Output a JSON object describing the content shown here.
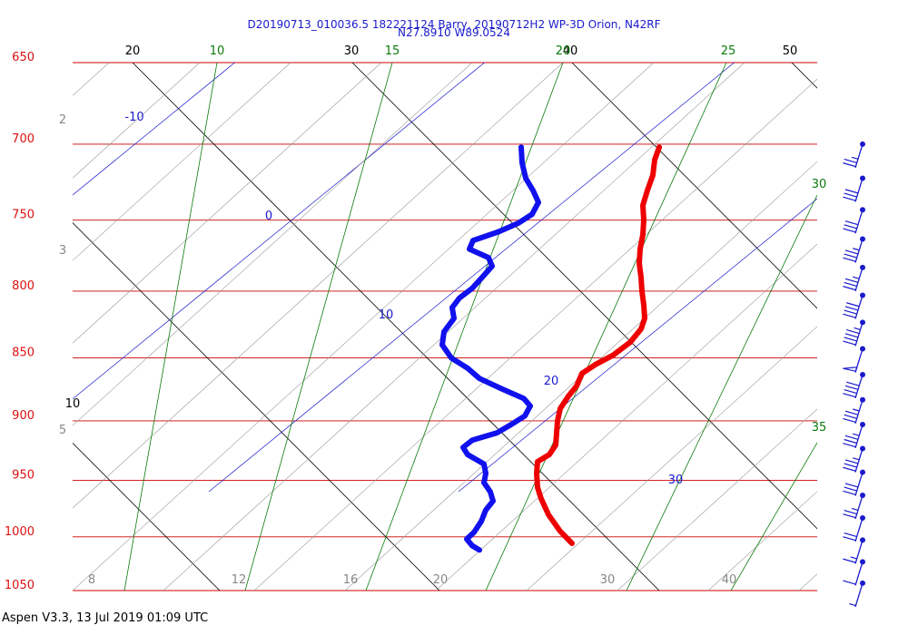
{
  "header": {
    "title_line1": "D20190713_010036.5 182221124 Barry, 20190712H2 WP-3D Orion, N42RF",
    "title_line2": "N27.8910 W89.0524"
  },
  "footer": {
    "software": "Aspen V3.3, 13 Jul 2019  01:09 UTC"
  },
  "chart_data": {
    "type": "line",
    "chart_kind": "skew-t log-p sounding",
    "pressure_levels_hpa": [
      650,
      700,
      750,
      800,
      850,
      900,
      950,
      1000,
      1050
    ],
    "pressure_labels": [
      "650",
      "700",
      "750",
      "800",
      "850",
      "900",
      "950",
      "1000",
      "1050"
    ],
    "isotherm_labels": [
      {
        "text": "20",
        "value": 20
      },
      {
        "text": "30",
        "value": 30
      },
      {
        "text": "40",
        "value": 40
      },
      {
        "text": "50",
        "value": 50
      },
      {
        "text": "10",
        "value": 10
      }
    ],
    "dry_adiabat_labels": [
      {
        "text": "-10",
        "value": -10
      },
      {
        "text": "0",
        "value": 0
      },
      {
        "text": "10",
        "value": 10
      },
      {
        "text": "20",
        "value": 20
      },
      {
        "text": "30",
        "value": 30
      }
    ],
    "mixing_ratio_labels": [
      {
        "text": "10",
        "value": 10
      },
      {
        "text": "15",
        "value": 15
      },
      {
        "text": "20",
        "value": 20
      },
      {
        "text": "25",
        "value": 25
      },
      {
        "text": "30",
        "value": 30
      },
      {
        "text": "35",
        "value": 35
      }
    ],
    "bottom_scale_labels": [
      "8",
      "12",
      "16",
      "20",
      "30",
      "40"
    ],
    "left_scale_labels": [
      "2",
      "3",
      "5"
    ],
    "series": [
      {
        "id": "temperature",
        "color": "#ee0000",
        "points": [
          {
            "p": 702,
            "x": 726
          },
          {
            "p": 710,
            "x": 721
          },
          {
            "p": 720,
            "x": 719
          },
          {
            "p": 730,
            "x": 713
          },
          {
            "p": 740,
            "x": 708
          },
          {
            "p": 750,
            "x": 709
          },
          {
            "p": 760,
            "x": 708
          },
          {
            "p": 770,
            "x": 705
          },
          {
            "p": 780,
            "x": 704
          },
          {
            "p": 790,
            "x": 706
          },
          {
            "p": 800,
            "x": 707
          },
          {
            "p": 810,
            "x": 709
          },
          {
            "p": 820,
            "x": 710
          },
          {
            "p": 828,
            "x": 706
          },
          {
            "p": 838,
            "x": 694
          },
          {
            "p": 848,
            "x": 675
          },
          {
            "p": 855,
            "x": 656
          },
          {
            "p": 862,
            "x": 641
          },
          {
            "p": 872,
            "x": 635
          },
          {
            "p": 880,
            "x": 626
          },
          {
            "p": 890,
            "x": 617
          },
          {
            "p": 900,
            "x": 614
          },
          {
            "p": 910,
            "x": 613
          },
          {
            "p": 920,
            "x": 612
          },
          {
            "p": 928,
            "x": 605
          },
          {
            "p": 934,
            "x": 592
          },
          {
            "p": 944,
            "x": 591
          },
          {
            "p": 956,
            "x": 592
          },
          {
            "p": 966,
            "x": 596
          },
          {
            "p": 980,
            "x": 604
          },
          {
            "p": 995,
            "x": 617
          },
          {
            "p": 1006,
            "x": 630
          }
        ]
      },
      {
        "id": "dewpoint",
        "color": "#1111ee",
        "points": [
          {
            "p": 702,
            "x": 574
          },
          {
            "p": 712,
            "x": 575
          },
          {
            "p": 722,
            "x": 579
          },
          {
            "p": 730,
            "x": 587
          },
          {
            "p": 738,
            "x": 593
          },
          {
            "p": 746,
            "x": 586
          },
          {
            "p": 752,
            "x": 571
          },
          {
            "p": 758,
            "x": 549
          },
          {
            "p": 764,
            "x": 521
          },
          {
            "p": 770,
            "x": 517
          },
          {
            "p": 776,
            "x": 538
          },
          {
            "p": 782,
            "x": 542
          },
          {
            "p": 790,
            "x": 531
          },
          {
            "p": 798,
            "x": 520
          },
          {
            "p": 805,
            "x": 506
          },
          {
            "p": 812,
            "x": 498
          },
          {
            "p": 820,
            "x": 500
          },
          {
            "p": 830,
            "x": 489
          },
          {
            "p": 840,
            "x": 487
          },
          {
            "p": 850,
            "x": 497
          },
          {
            "p": 858,
            "x": 515
          },
          {
            "p": 866,
            "x": 528
          },
          {
            "p": 874,
            "x": 552
          },
          {
            "p": 882,
            "x": 577
          },
          {
            "p": 888,
            "x": 584
          },
          {
            "p": 896,
            "x": 578
          },
          {
            "p": 903,
            "x": 563
          },
          {
            "p": 910,
            "x": 547
          },
          {
            "p": 916,
            "x": 520
          },
          {
            "p": 922,
            "x": 510
          },
          {
            "p": 928,
            "x": 515
          },
          {
            "p": 936,
            "x": 533
          },
          {
            "p": 944,
            "x": 535
          },
          {
            "p": 952,
            "x": 533
          },
          {
            "p": 960,
            "x": 540
          },
          {
            "p": 968,
            "x": 543
          },
          {
            "p": 976,
            "x": 535
          },
          {
            "p": 986,
            "x": 530
          },
          {
            "p": 996,
            "x": 522
          },
          {
            "p": 1002,
            "x": 514
          },
          {
            "p": 1008,
            "x": 520
          },
          {
            "p": 1012,
            "x": 528
          }
        ]
      }
    ],
    "wind_barbs": [
      {
        "p": 700,
        "speed_kt": 25
      },
      {
        "p": 722,
        "speed_kt": 30
      },
      {
        "p": 743,
        "speed_kt": 30
      },
      {
        "p": 763,
        "speed_kt": 35
      },
      {
        "p": 783,
        "speed_kt": 35
      },
      {
        "p": 803,
        "speed_kt": 40
      },
      {
        "p": 823,
        "speed_kt": 45
      },
      {
        "p": 843,
        "speed_kt": 50
      },
      {
        "p": 863,
        "speed_kt": 40
      },
      {
        "p": 883,
        "speed_kt": 35
      },
      {
        "p": 903,
        "speed_kt": 35
      },
      {
        "p": 923,
        "speed_kt": 35
      },
      {
        "p": 943,
        "speed_kt": 30
      },
      {
        "p": 963,
        "speed_kt": 25
      },
      {
        "p": 983,
        "speed_kt": 20
      },
      {
        "p": 1003,
        "speed_kt": 15
      },
      {
        "p": 1023,
        "speed_kt": 10
      },
      {
        "p": 1043,
        "speed_kt": 5
      }
    ]
  }
}
